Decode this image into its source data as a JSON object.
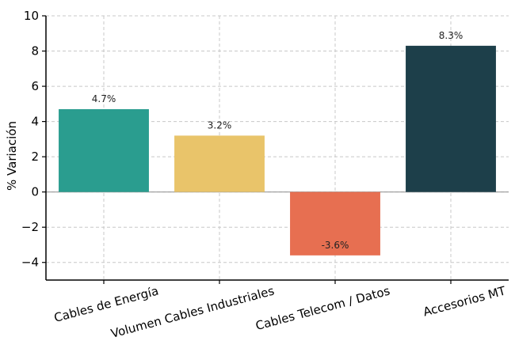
{
  "chart_data": {
    "type": "bar",
    "title": "",
    "xlabel": "",
    "ylabel": "% Variación",
    "ylim": [
      -5,
      10
    ],
    "yticks": [
      -4,
      -2,
      0,
      2,
      4,
      6,
      8,
      10
    ],
    "ytick_labels": [
      "−4",
      "−2",
      "0",
      "2",
      "4",
      "6",
      "8",
      "10"
    ],
    "grid": true,
    "categories": [
      "Cables de Energía",
      "Volumen Cables Industriales",
      "Cables Telecom / Datos",
      "Accesorios MT"
    ],
    "values": [
      4.7,
      3.2,
      -3.6,
      8.3
    ],
    "value_labels": [
      "4.7%",
      "3.2%",
      "-3.6%",
      "8.3%"
    ],
    "colors": [
      "#2a9d8f",
      "#e9c46a",
      "#e76f51",
      "#1d3f4a"
    ]
  }
}
